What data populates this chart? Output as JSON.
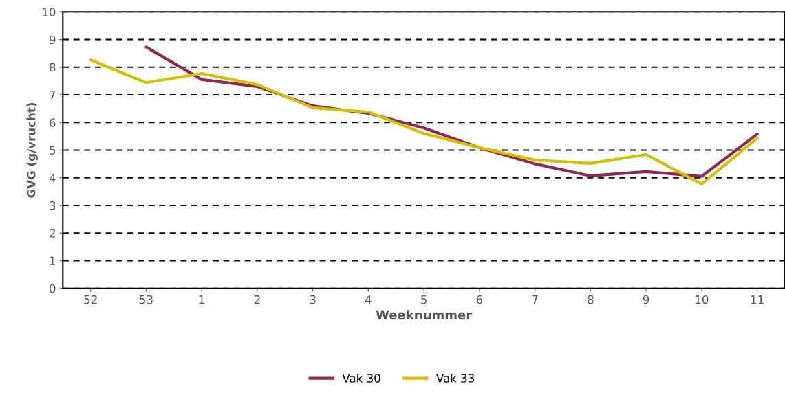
{
  "chart_data": {
    "type": "line",
    "xlabel": "Weeknummer",
    "ylabel": "GVG (g/vrucht)",
    "categories": [
      "52",
      "53",
      "1",
      "2",
      "3",
      "4",
      "5",
      "6",
      "7",
      "8",
      "9",
      "10",
      "11"
    ],
    "series": [
      {
        "name": "Vak 30",
        "color": "#93284f",
        "values": [
          null,
          8.73,
          7.55,
          7.3,
          6.6,
          6.33,
          5.8,
          5.09,
          4.5,
          4.07,
          4.22,
          4.05,
          5.58
        ]
      },
      {
        "name": "Vak 33",
        "color": "#d6bf00",
        "values": [
          8.26,
          7.44,
          7.77,
          7.37,
          6.53,
          6.38,
          5.6,
          5.09,
          4.64,
          4.52,
          4.84,
          3.77,
          5.43
        ]
      }
    ],
    "ylim": [
      0,
      10
    ],
    "yticks": [
      0,
      1,
      2,
      3,
      4,
      5,
      6,
      7,
      8,
      9,
      10
    ],
    "grid": "y",
    "legend": "bottom",
    "marker": "none",
    "line_style": "solid"
  }
}
